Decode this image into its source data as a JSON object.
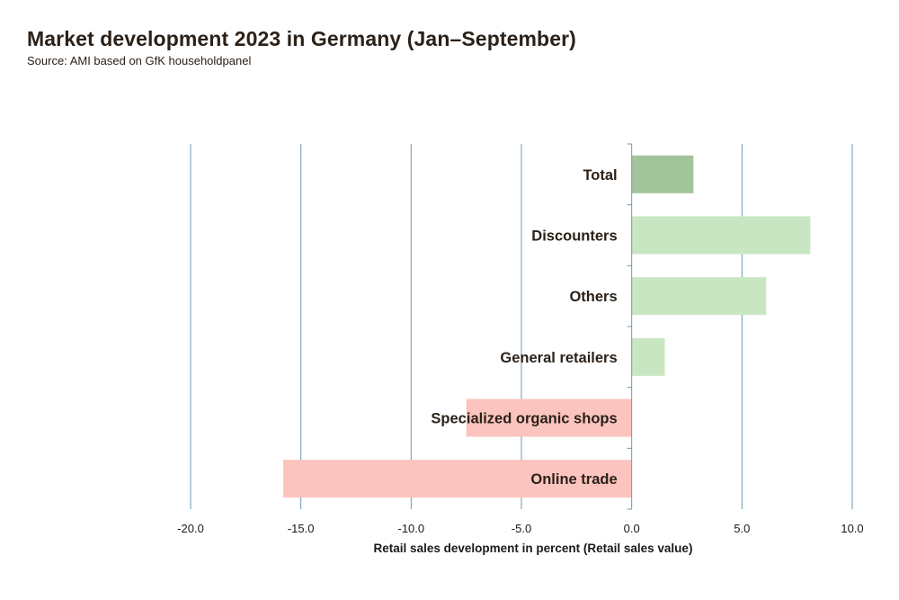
{
  "header": {
    "title": "Market development 2023 in Germany (Jan–September)",
    "subtitle": "Source: AMI based on GfK householdpanel"
  },
  "chart_data": {
    "type": "bar",
    "orientation": "horizontal",
    "title": "Market development 2023 in Germany (Jan–September)",
    "subtitle": "Source: AMI based on GfK householdpanel",
    "xlabel": "Retail sales development in percent (Retail sales value)",
    "ylabel": "",
    "xlim": [
      -20,
      10
    ],
    "xticks": [
      -20,
      -15,
      -10,
      -5,
      0,
      5,
      10
    ],
    "xtick_labels": [
      "-20.0",
      "-15.0",
      "-10.0",
      "-5.0",
      "0.0",
      "5.0",
      "10.0"
    ],
    "grid": "vertical",
    "categories": [
      "Total",
      "Discounters",
      "Others",
      "General retailers",
      "Specialized organic shops",
      "Online trade"
    ],
    "values": [
      2.8,
      8.1,
      6.1,
      1.5,
      -7.5,
      -15.8
    ],
    "colors": {
      "total": "#a3c49a",
      "positive": "#c9e6c2",
      "negative": "#fbc4bf",
      "grid": "#6a9ab5"
    }
  }
}
